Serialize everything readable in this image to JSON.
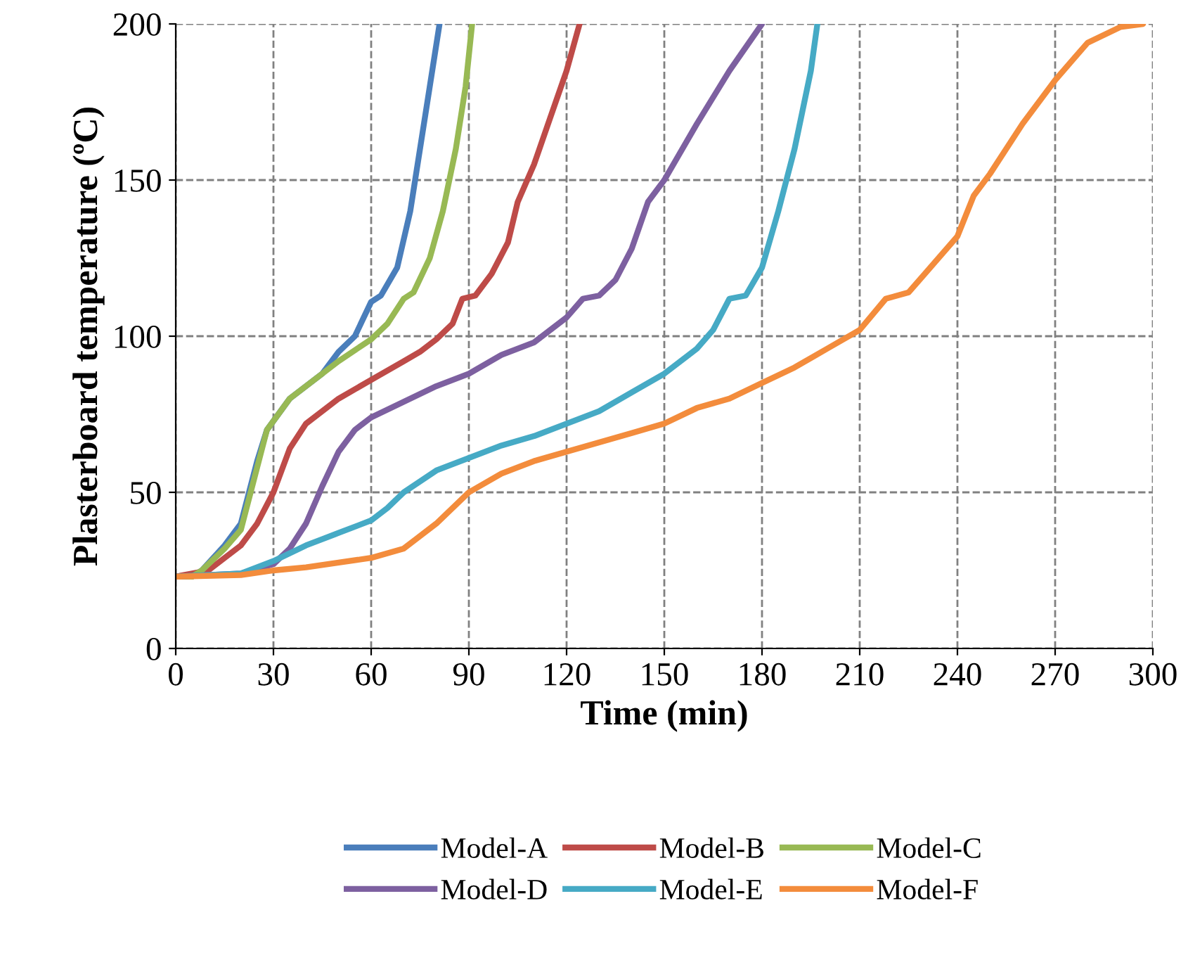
{
  "chart_data": {
    "type": "line",
    "xlabel": "Time (min)",
    "ylabel": "Plasterboard temperature (ºC)",
    "xlim": [
      0,
      300
    ],
    "xticks": [
      0,
      30,
      60,
      90,
      120,
      150,
      180,
      210,
      240,
      270,
      300
    ],
    "ylim": [
      0,
      200
    ],
    "yticks": [
      0,
      50,
      100,
      150,
      200
    ],
    "grid": true,
    "legend": "bottom",
    "marker": "none",
    "line_style": "solid",
    "series": [
      {
        "name": "Model-A",
        "color": "#4a7ebb",
        "x": [
          0,
          5,
          8,
          15,
          20,
          25,
          28,
          35,
          45,
          50,
          55,
          60,
          63,
          68,
          72,
          75,
          78,
          81
        ],
        "values": [
          23,
          23,
          25,
          33,
          40,
          60,
          70,
          80,
          88,
          95,
          100,
          111,
          113,
          122,
          140,
          160,
          180,
          200
        ]
      },
      {
        "name": "Model-B",
        "color": "#be4b48",
        "x": [
          0,
          10,
          20,
          25,
          30,
          35,
          40,
          50,
          60,
          70,
          75,
          80,
          85,
          88,
          92,
          97,
          102,
          105,
          110,
          115,
          120,
          124
        ],
        "values": [
          23,
          25,
          33,
          40,
          50,
          64,
          72,
          80,
          86,
          92,
          95,
          99,
          104,
          112,
          113,
          120,
          130,
          143,
          155,
          170,
          185,
          200
        ]
      },
      {
        "name": "Model-C",
        "color": "#98b954",
        "x": [
          0,
          5,
          8,
          15,
          20,
          25,
          28,
          35,
          40,
          50,
          60,
          65,
          70,
          73,
          78,
          82,
          86,
          89,
          91
        ],
        "values": [
          23,
          23,
          25,
          32,
          38,
          58,
          70,
          80,
          84,
          92,
          99,
          104,
          112,
          114,
          125,
          140,
          160,
          180,
          200
        ]
      },
      {
        "name": "Model-D",
        "color": "#7d60a0",
        "x": [
          0,
          20,
          30,
          35,
          40,
          45,
          50,
          55,
          60,
          70,
          80,
          90,
          100,
          110,
          120,
          125,
          130,
          135,
          140,
          145,
          150,
          160,
          170,
          180
        ],
        "values": [
          23,
          24,
          27,
          32,
          40,
          52,
          63,
          70,
          74,
          79,
          84,
          88,
          94,
          98,
          106,
          112,
          113,
          118,
          128,
          143,
          150,
          168,
          185,
          200
        ]
      },
      {
        "name": "Model-E",
        "color": "#46aac5",
        "x": [
          0,
          20,
          30,
          40,
          50,
          60,
          65,
          70,
          80,
          90,
          100,
          110,
          120,
          130,
          140,
          150,
          160,
          165,
          170,
          175,
          180,
          185,
          190,
          195,
          197
        ],
        "values": [
          23,
          24,
          28,
          33,
          37,
          41,
          45,
          50,
          57,
          61,
          65,
          68,
          72,
          76,
          82,
          88,
          96,
          102,
          112,
          113,
          122,
          140,
          160,
          185,
          200
        ]
      },
      {
        "name": "Model-F",
        "color": "#f38c3c",
        "x": [
          0,
          20,
          30,
          40,
          50,
          60,
          70,
          80,
          90,
          100,
          110,
          120,
          130,
          140,
          150,
          160,
          170,
          180,
          190,
          200,
          210,
          218,
          225,
          230,
          240,
          245,
          250,
          260,
          270,
          280,
          290,
          297
        ],
        "values": [
          23,
          23.5,
          25,
          26,
          27.5,
          29,
          32,
          40,
          50,
          56,
          60,
          63,
          66,
          69,
          72,
          77,
          80,
          85,
          90,
          96,
          102,
          112,
          114,
          120,
          132,
          145,
          152,
          168,
          182,
          194,
          199,
          200
        ]
      }
    ]
  }
}
